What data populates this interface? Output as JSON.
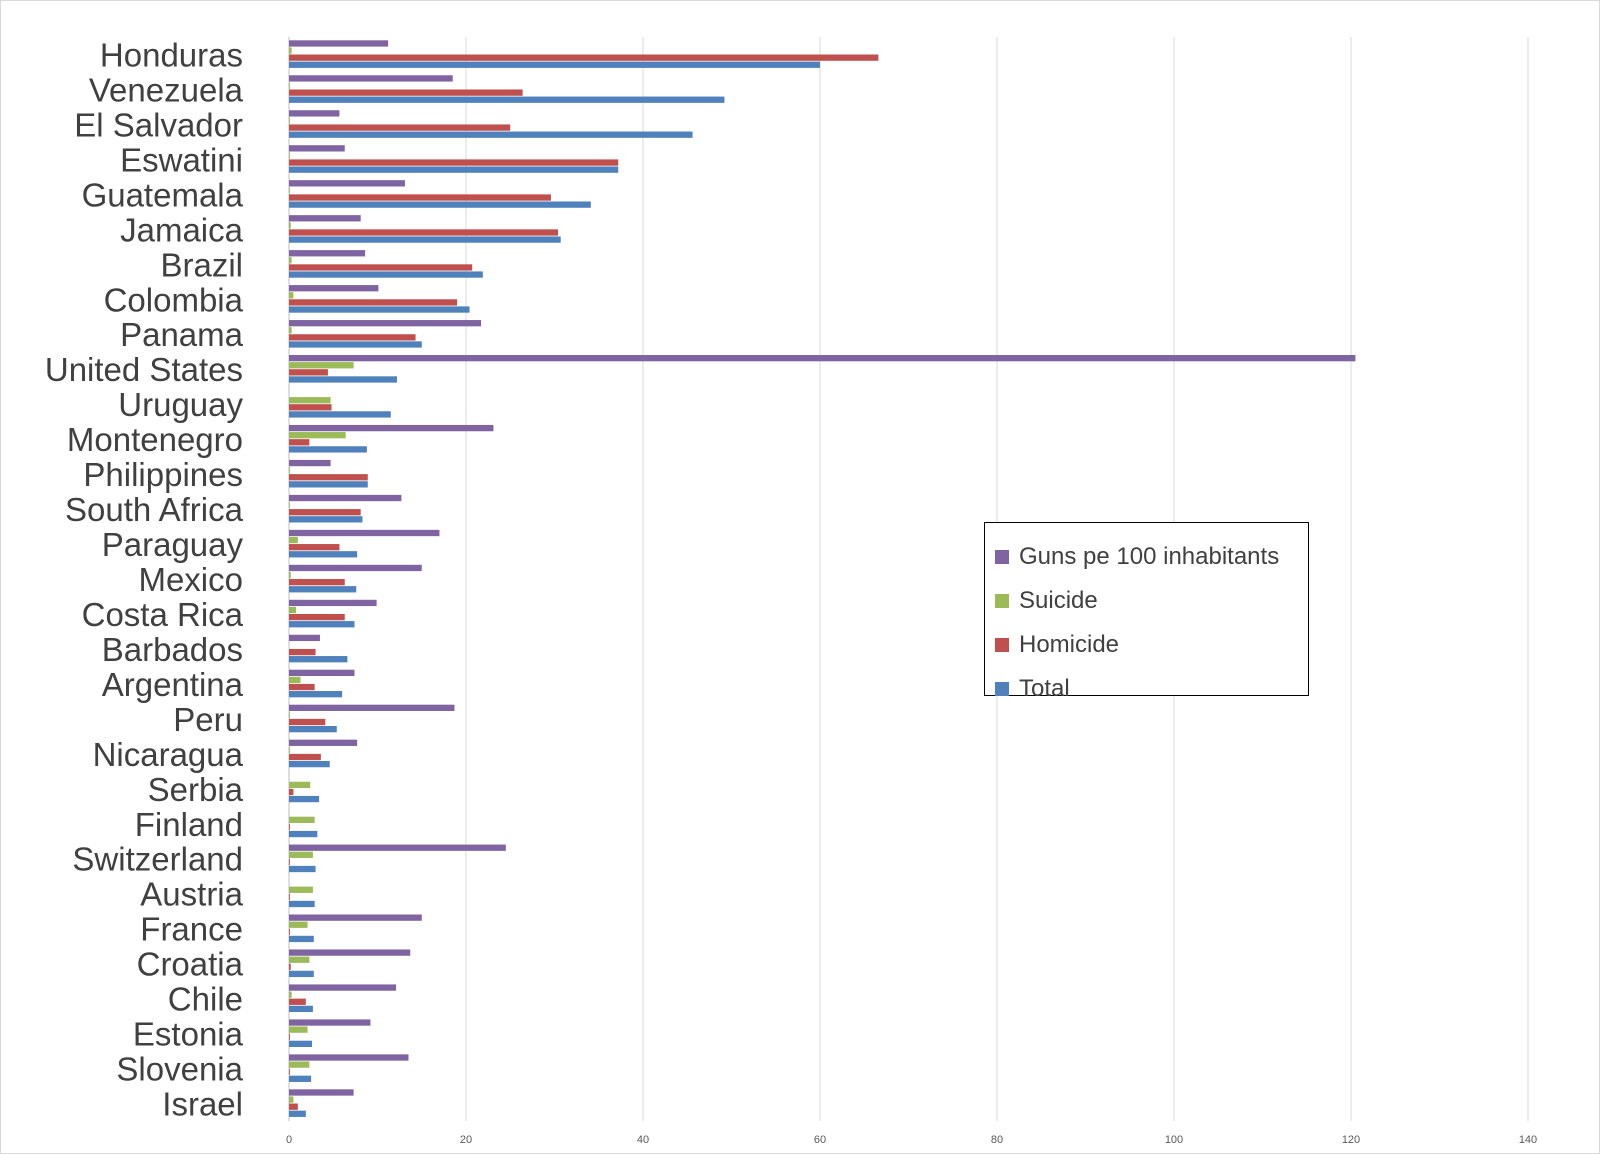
{
  "chart_data": {
    "type": "bar",
    "orientation": "horizontal",
    "title": "",
    "xlabel": "",
    "ylabel": "",
    "xlim": [
      0,
      140
    ],
    "x_ticks": [
      "0",
      "20",
      "40",
      "60",
      "80",
      "100",
      "120",
      "140"
    ],
    "grid": true,
    "legend_position": "right-middle",
    "categories": [
      "Honduras",
      "Venezuela",
      "El Salvador",
      "Eswatini",
      "Guatemala",
      "Jamaica",
      "Brazil",
      "Colombia",
      "Panama",
      "United States",
      "Uruguay",
      "Montenegro",
      "Philippines",
      "South Africa",
      "Paraguay",
      "Mexico",
      "Costa Rica",
      "Barbados",
      "Argentina",
      "Peru",
      "Nicaragua",
      "Serbia",
      "Finland",
      "Switzerland",
      "Austria",
      "France",
      "Croatia",
      "Chile",
      "Estonia",
      "Slovenia",
      "Israel"
    ],
    "series": [
      {
        "name": "Guns pe 100 inhabitants",
        "color": "#8064A2",
        "values": [
          11.2,
          18.5,
          5.7,
          6.3,
          13.1,
          8.1,
          8.6,
          10.1,
          21.7,
          120.5,
          0,
          23.1,
          4.7,
          12.7,
          17.0,
          15.0,
          9.9,
          3.5,
          7.4,
          18.7,
          7.7,
          0,
          0,
          24.5,
          0,
          15.0,
          13.7,
          12.1,
          9.2,
          13.5,
          7.3
        ]
      },
      {
        "name": "Suicide",
        "color": "#9BBB59",
        "values": [
          0.3,
          0.1,
          0.1,
          0.1,
          0.1,
          0.2,
          0.3,
          0.5,
          0.3,
          7.3,
          4.7,
          6.4,
          0.1,
          0.1,
          1.0,
          0.2,
          0.8,
          0.0,
          1.3,
          0.1,
          0.1,
          2.4,
          2.9,
          2.7,
          2.7,
          2.1,
          2.3,
          0.3,
          2.1,
          2.3,
          0.5
        ]
      },
      {
        "name": "Homicide",
        "color": "#C0504D",
        "values": [
          66.6,
          26.4,
          25.0,
          37.2,
          29.6,
          30.4,
          20.7,
          19.0,
          14.3,
          4.4,
          4.8,
          2.3,
          8.9,
          8.1,
          5.7,
          6.3,
          6.3,
          3.0,
          2.9,
          4.1,
          3.6,
          0.5,
          0.1,
          0.1,
          0.1,
          0.1,
          0.2,
          1.9,
          0.1,
          0.1,
          1.0
        ]
      },
      {
        "name": "Total",
        "color": "#4F81BD",
        "values": [
          60.0,
          49.2,
          45.6,
          37.2,
          34.1,
          30.7,
          21.9,
          20.4,
          15.0,
          12.2,
          11.5,
          8.8,
          8.9,
          8.3,
          7.7,
          7.6,
          7.4,
          6.6,
          6.0,
          5.4,
          4.6,
          3.4,
          3.2,
          3.0,
          2.9,
          2.8,
          2.8,
          2.7,
          2.6,
          2.5,
          1.9
        ]
      }
    ]
  }
}
